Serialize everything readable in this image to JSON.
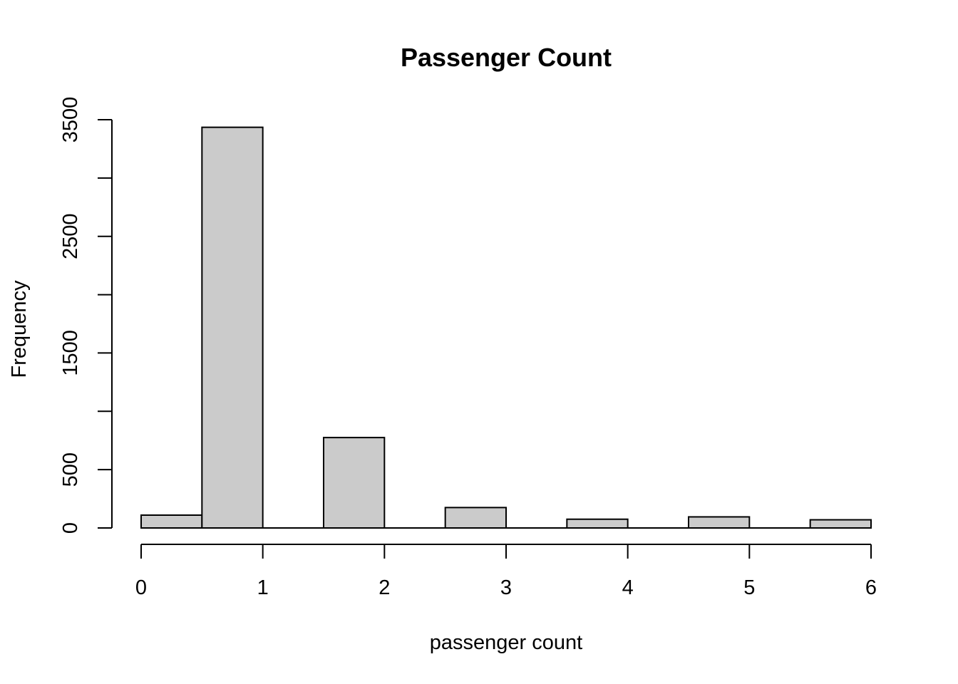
{
  "chart_data": {
    "type": "bar",
    "subtype": "histogram",
    "title": "Passenger Count",
    "xlabel": "passenger count",
    "ylabel": "Frequency",
    "bins": [
      {
        "x0": 0.0,
        "x1": 0.5,
        "value": 110
      },
      {
        "x0": 0.5,
        "x1": 1.0,
        "value": 3435
      },
      {
        "x0": 1.0,
        "x1": 1.5,
        "value": 0
      },
      {
        "x0": 1.5,
        "x1": 2.0,
        "value": 775
      },
      {
        "x0": 2.0,
        "x1": 2.5,
        "value": 0
      },
      {
        "x0": 2.5,
        "x1": 3.0,
        "value": 175
      },
      {
        "x0": 3.0,
        "x1": 3.5,
        "value": 0
      },
      {
        "x0": 3.5,
        "x1": 4.0,
        "value": 75
      },
      {
        "x0": 4.0,
        "x1": 4.5,
        "value": 0
      },
      {
        "x0": 4.5,
        "x1": 5.0,
        "value": 95
      },
      {
        "x0": 5.0,
        "x1": 5.5,
        "value": 0
      },
      {
        "x0": 5.5,
        "x1": 6.0,
        "value": 70
      }
    ],
    "xlim": [
      0,
      6
    ],
    "ylim": [
      0,
      3500
    ],
    "x_ticks": [
      0,
      1,
      2,
      3,
      4,
      5,
      6
    ],
    "y_ticks": [
      0,
      500,
      1000,
      1500,
      2000,
      2500,
      3000,
      3500
    ],
    "y_tick_labels": [
      {
        "value": 0,
        "label": "0"
      },
      {
        "value": 500,
        "label": "500"
      },
      {
        "value": 1500,
        "label": "1500"
      },
      {
        "value": 2500,
        "label": "2500"
      },
      {
        "value": 3500,
        "label": "3500"
      }
    ],
    "grid": false,
    "colors": {
      "bar_fill": "#cbcbcb",
      "bar_stroke": "#000000"
    }
  }
}
